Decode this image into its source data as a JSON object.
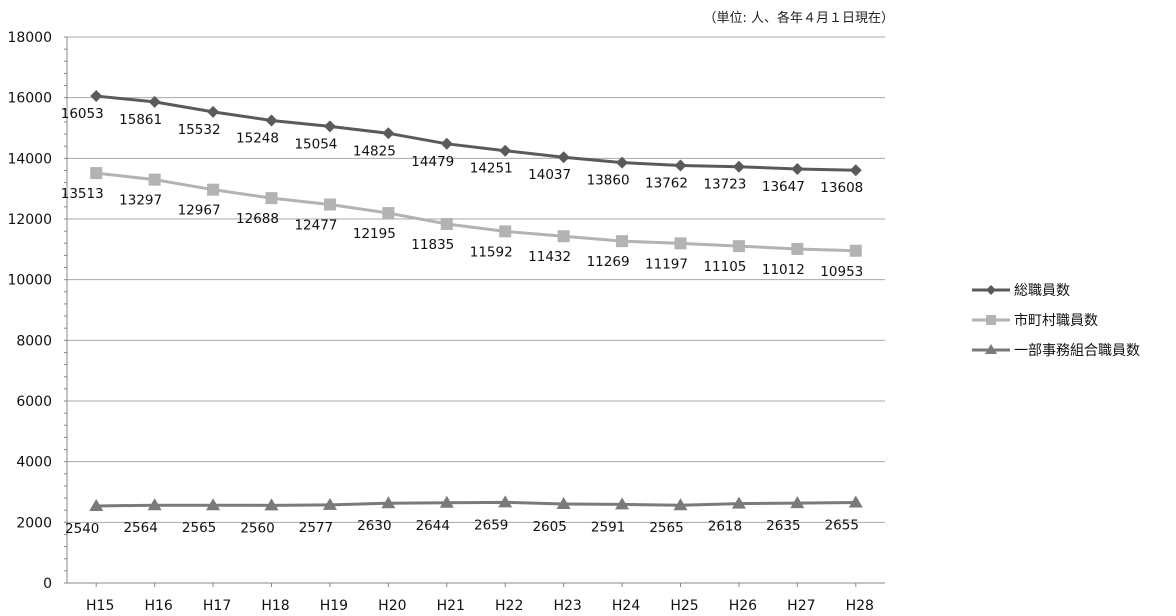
{
  "note": "（単位: 人、各年４月１日現在）",
  "chart_data": {
    "type": "line",
    "categories": [
      "H15",
      "H16",
      "H17",
      "H18",
      "H19",
      "H20",
      "H21",
      "H22",
      "H23",
      "H24",
      "H25",
      "H26",
      "H27",
      "H28"
    ],
    "ylim": [
      0,
      18000
    ],
    "yticks": [
      0,
      2000,
      4000,
      6000,
      8000,
      10000,
      12000,
      14000,
      16000,
      18000
    ],
    "grid": true,
    "legend_position": "right",
    "series": [
      {
        "name": "総職員数",
        "marker": "diamond",
        "color": "#5a5a5a",
        "values": [
          16053,
          15861,
          15532,
          15248,
          15054,
          14825,
          14479,
          14251,
          14037,
          13860,
          13762,
          13723,
          13647,
          13608
        ]
      },
      {
        "name": "市町村職員数",
        "marker": "square",
        "color": "#b3b3b3",
        "values": [
          13513,
          13297,
          12967,
          12688,
          12477,
          12195,
          11835,
          11592,
          11432,
          11269,
          11197,
          11105,
          11012,
          10953
        ]
      },
      {
        "name": "一部事務組合職員数",
        "marker": "triangle",
        "color": "#7a7a7a",
        "values": [
          2540,
          2564,
          2565,
          2560,
          2577,
          2630,
          2644,
          2659,
          2605,
          2591,
          2565,
          2618,
          2635,
          2655
        ]
      }
    ]
  }
}
